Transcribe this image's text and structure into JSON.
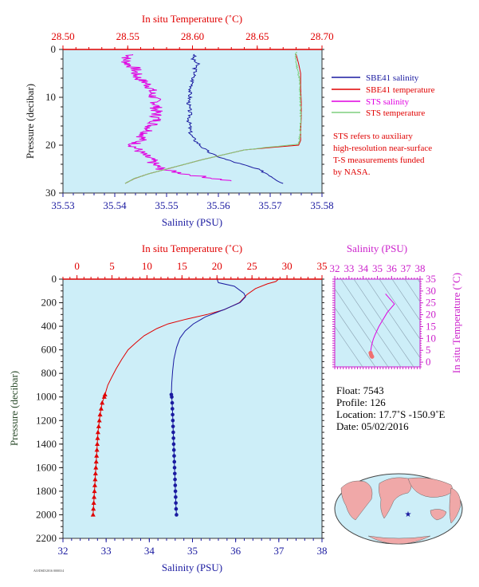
{
  "colors": {
    "plot_bg": "#cdeef8",
    "temperature": "#e00000",
    "salinity": "#1a1aa0",
    "sts_salinity": "#e000e0",
    "sts_temperature": "#7fcf7f",
    "ts_axis": "#cc22cc",
    "pressure_axis": "#1a1a1a"
  },
  "chart_data": [
    {
      "type": "line",
      "id": "near-surface-profile",
      "top_xlabel": "In situ Temperature (˚C)",
      "bottom_xlabel": "Salinity (PSU)",
      "ylabel": "Pressure (decibar)",
      "temperature_xlim": [
        28.5,
        28.7
      ],
      "temperature_ticks": [
        "28.50",
        "28.55",
        "28.60",
        "28.65",
        "28.70"
      ],
      "salinity_xlim": [
        35.53,
        35.58
      ],
      "salinity_ticks": [
        "35.53",
        "35.54",
        "35.55",
        "35.56",
        "35.57",
        "35.58"
      ],
      "ylim": [
        0,
        30
      ],
      "y_ticks": [
        "0",
        "10",
        "20",
        "30"
      ],
      "legend": [
        {
          "label": "SBE41 salinity",
          "color": "#1a1aa0"
        },
        {
          "label": "SBE41 temperature",
          "color": "#e00000"
        },
        {
          "label": "STS salinity",
          "color": "#e000e0"
        },
        {
          "label": "STS temperature",
          "color": "#7fcf7f"
        }
      ],
      "note": [
        "STS refers to auxiliary",
        "high-resolution near-surface",
        "T-S measurements funded",
        "by NASA."
      ],
      "series": [
        {
          "name": "SBE41 salinity",
          "axis": "salinity",
          "points": [
            [
              35.5555,
              1
            ],
            [
              35.555,
              2
            ],
            [
              35.556,
              3
            ],
            [
              35.5555,
              4
            ],
            [
              35.5555,
              5
            ],
            [
              35.555,
              6
            ],
            [
              35.555,
              7
            ],
            [
              35.5548,
              8
            ],
            [
              35.5545,
              9
            ],
            [
              35.5545,
              10
            ],
            [
              35.5543,
              11
            ],
            [
              35.5543,
              12
            ],
            [
              35.5545,
              13
            ],
            [
              35.5545,
              14
            ],
            [
              35.5543,
              15
            ],
            [
              35.5545,
              16
            ],
            [
              35.5545,
              17
            ],
            [
              35.5548,
              18
            ],
            [
              35.5555,
              19
            ],
            [
              35.5565,
              20
            ],
            [
              35.5575,
              21
            ],
            [
              35.559,
              22
            ],
            [
              35.5615,
              23
            ],
            [
              35.5645,
              24
            ],
            [
              35.5675,
              25
            ],
            [
              35.5695,
              26
            ],
            [
              35.571,
              27
            ],
            [
              35.5725,
              28
            ]
          ]
        },
        {
          "name": "SBE41 temperature",
          "axis": "temperature",
          "points": [
            [
              28.68,
              1
            ],
            [
              28.682,
              3
            ],
            [
              28.6835,
              5
            ],
            [
              28.6835,
              8
            ],
            [
              28.684,
              11
            ],
            [
              28.684,
              14
            ],
            [
              28.6835,
              17
            ],
            [
              28.6835,
              19
            ],
            [
              28.682,
              20
            ],
            [
              28.66,
              20.5
            ],
            [
              28.64,
              21
            ],
            [
              28.624,
              22
            ],
            [
              28.608,
              23
            ],
            [
              28.594,
              24
            ],
            [
              28.58,
              25
            ],
            [
              28.566,
              26
            ],
            [
              28.555,
              27
            ],
            [
              28.548,
              28
            ]
          ]
        },
        {
          "name": "STS salinity",
          "axis": "salinity",
          "points": [
            [
              35.5435,
              1
            ],
            [
              35.542,
              2
            ],
            [
              35.5425,
              3
            ],
            [
              35.544,
              4
            ],
            [
              35.544,
              5
            ],
            [
              35.5445,
              6
            ],
            [
              35.546,
              7
            ],
            [
              35.547,
              8
            ],
            [
              35.547,
              9
            ],
            [
              35.5475,
              10
            ],
            [
              35.548,
              11
            ],
            [
              35.548,
              12
            ],
            [
              35.548,
              13
            ],
            [
              35.548,
              14
            ],
            [
              35.548,
              15
            ],
            [
              35.547,
              16
            ],
            [
              35.5465,
              17
            ],
            [
              35.5455,
              18
            ],
            [
              35.545,
              19
            ],
            [
              35.5435,
              20
            ],
            [
              35.5445,
              21
            ],
            [
              35.5455,
              22
            ],
            [
              35.547,
              23
            ],
            [
              35.5475,
              24
            ],
            [
              35.549,
              25
            ],
            [
              35.5535,
              26
            ],
            [
              35.5595,
              27
            ],
            [
              35.5625,
              27.5
            ]
          ]
        },
        {
          "name": "STS temperature",
          "axis": "temperature",
          "points": [
            [
              28.68,
              0.5
            ],
            [
              28.6795,
              2
            ],
            [
              28.681,
              4
            ],
            [
              28.6825,
              6
            ],
            [
              28.683,
              9
            ],
            [
              28.6835,
              12
            ],
            [
              28.6835,
              15
            ],
            [
              28.683,
              18
            ],
            [
              28.682,
              19.8
            ],
            [
              28.66,
              20.4
            ],
            [
              28.64,
              21
            ],
            [
              28.624,
              22
            ],
            [
              28.608,
              23
            ],
            [
              28.594,
              24
            ],
            [
              28.58,
              25
            ],
            [
              28.566,
              26
            ],
            [
              28.555,
              27
            ],
            [
              28.548,
              28
            ]
          ]
        }
      ]
    },
    {
      "type": "line",
      "id": "full-profile",
      "top_xlabel": "In situ Temperature (˚C)",
      "bottom_xlabel": "Salinity (PSU)",
      "ylabel": "Pressure (decibar)",
      "temperature_xlim": [
        -2,
        35
      ],
      "temperature_ticks": [
        "0",
        "5",
        "10",
        "15",
        "20",
        "25",
        "30",
        "35"
      ],
      "salinity_xlim": [
        32,
        38
      ],
      "salinity_ticks": [
        "32",
        "33",
        "34",
        "35",
        "36",
        "37",
        "38"
      ],
      "ylim": [
        0,
        2200
      ],
      "y_ticks": [
        "0",
        "200",
        "400",
        "600",
        "800",
        "1000",
        "1200",
        "1400",
        "1600",
        "1800",
        "2000",
        "2200"
      ],
      "series": [
        {
          "name": "temperature",
          "axis": "temperature",
          "marker": "triangle",
          "marker_from": 980,
          "points": [
            [
              28.8,
              0
            ],
            [
              28.4,
              20
            ],
            [
              27.2,
              40
            ],
            [
              25.5,
              80
            ],
            [
              24.3,
              130
            ],
            [
              23.2,
              200
            ],
            [
              21.0,
              260
            ],
            [
              18.6,
              300
            ],
            [
              15.6,
              340
            ],
            [
              13.0,
              380
            ],
            [
              11.4,
              420
            ],
            [
              9.6,
              480
            ],
            [
              8.4,
              540
            ],
            [
              7.3,
              600
            ],
            [
              6.4,
              680
            ],
            [
              5.6,
              760
            ],
            [
              4.9,
              840
            ],
            [
              4.4,
              900
            ],
            [
              4.0,
              980
            ],
            [
              3.9,
              1000
            ],
            [
              3.6,
              1050
            ],
            [
              3.45,
              1100
            ],
            [
              3.3,
              1150
            ],
            [
              3.2,
              1200
            ],
            [
              3.1,
              1250
            ],
            [
              3.0,
              1300
            ],
            [
              2.95,
              1350
            ],
            [
              2.9,
              1400
            ],
            [
              2.85,
              1450
            ],
            [
              2.8,
              1500
            ],
            [
              2.75,
              1550
            ],
            [
              2.7,
              1600
            ],
            [
              2.65,
              1650
            ],
            [
              2.6,
              1700
            ],
            [
              2.55,
              1750
            ],
            [
              2.5,
              1800
            ],
            [
              2.45,
              1850
            ],
            [
              2.4,
              1900
            ],
            [
              2.35,
              1950
            ],
            [
              2.3,
              2000
            ]
          ]
        },
        {
          "name": "salinity",
          "axis": "salinity",
          "marker": "circle",
          "marker_from": 980,
          "points": [
            [
              35.57,
              0
            ],
            [
              35.6,
              30
            ],
            [
              35.97,
              60
            ],
            [
              36.19,
              120
            ],
            [
              36.23,
              150
            ],
            [
              36.1,
              200
            ],
            [
              35.72,
              260
            ],
            [
              35.3,
              320
            ],
            [
              35.02,
              380
            ],
            [
              34.83,
              440
            ],
            [
              34.71,
              500
            ],
            [
              34.63,
              580
            ],
            [
              34.57,
              680
            ],
            [
              34.54,
              780
            ],
            [
              34.52,
              880
            ],
            [
              34.51,
              980
            ],
            [
              34.52,
              1000
            ],
            [
              34.53,
              1050
            ],
            [
              34.535,
              1100
            ],
            [
              34.54,
              1150
            ],
            [
              34.545,
              1200
            ],
            [
              34.55,
              1250
            ],
            [
              34.555,
              1300
            ],
            [
              34.56,
              1350
            ],
            [
              34.565,
              1400
            ],
            [
              34.57,
              1450
            ],
            [
              34.575,
              1500
            ],
            [
              34.58,
              1550
            ],
            [
              34.585,
              1600
            ],
            [
              34.59,
              1650
            ],
            [
              34.595,
              1700
            ],
            [
              34.6,
              1750
            ],
            [
              34.605,
              1800
            ],
            [
              34.61,
              1850
            ],
            [
              34.615,
              1900
            ],
            [
              34.62,
              1950
            ],
            [
              34.63,
              2000
            ]
          ]
        }
      ]
    },
    {
      "type": "scatter",
      "id": "ts-diagram",
      "top_xlabel": "Salinity (PSU)",
      "ylabel": "In situ Temperature (˚C)",
      "xlim": [
        32,
        38
      ],
      "x_ticks": [
        "32",
        "33",
        "34",
        "35",
        "36",
        "37",
        "38"
      ],
      "ylim": [
        -2,
        35
      ],
      "y_ticks": [
        "0",
        "5",
        "10",
        "15",
        "20",
        "25",
        "30",
        "35"
      ],
      "series": [
        {
          "name": "T-S",
          "points": [
            [
              35.57,
              28.8
            ],
            [
              36.2,
              24.5
            ],
            [
              35.7,
              21
            ],
            [
              35.1,
              15
            ],
            [
              34.83,
              11.5
            ],
            [
              34.71,
              9.6
            ],
            [
              34.6,
              7.3
            ],
            [
              34.55,
              5.6
            ],
            [
              34.53,
              4.4
            ],
            [
              34.52,
              3.9
            ],
            [
              34.55,
              3.2
            ],
            [
              34.58,
              2.8
            ],
            [
              34.6,
              2.5
            ],
            [
              34.63,
              2.3
            ]
          ]
        }
      ]
    }
  ],
  "float_info": {
    "float": "Float:  7543",
    "profile": "Profile:  126",
    "location": "Location:  17.7˚S  -150.9˚E",
    "date": "Date:  05/02/2016"
  },
  "footer_code": "AO/DSD/2016 00003/4"
}
